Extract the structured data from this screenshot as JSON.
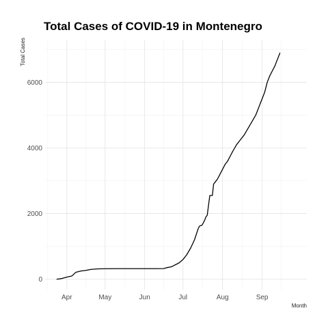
{
  "chart_data": {
    "type": "line",
    "title": "Total Cases of COVID-19 in Montenegro",
    "xlabel": "Month",
    "ylabel": "Total Cases",
    "x_tick_labels": [
      "Apr",
      "May",
      "Jun",
      "Jul",
      "Aug",
      "Sep"
    ],
    "x_tick_dates": [
      "2020-04-01",
      "2020-05-01",
      "2020-06-01",
      "2020-07-01",
      "2020-08-01",
      "2020-09-01"
    ],
    "y_ticks": [
      0,
      2000,
      4000,
      6000
    ],
    "xlim": [
      "2020-03-15",
      "2020-10-06"
    ],
    "ylim": [
      -320,
      7300
    ],
    "grid": true,
    "series": [
      {
        "color": "#000000",
        "x": [
          "2020-03-24",
          "2020-03-28",
          "2020-04-01",
          "2020-04-05",
          "2020-04-08",
          "2020-04-12",
          "2020-04-16",
          "2020-04-20",
          "2020-04-25",
          "2020-05-01",
          "2020-05-10",
          "2020-05-20",
          "2020-06-01",
          "2020-06-10",
          "2020-06-16",
          "2020-06-18",
          "2020-06-22",
          "2020-06-25",
          "2020-06-28",
          "2020-07-01",
          "2020-07-04",
          "2020-07-07",
          "2020-07-10",
          "2020-07-13",
          "2020-07-14",
          "2020-07-16",
          "2020-07-18",
          "2020-07-19",
          "2020-07-20",
          "2020-07-22",
          "2020-07-23",
          "2020-07-24",
          "2020-07-25",
          "2020-07-26",
          "2020-07-27",
          "2020-07-28",
          "2020-07-30",
          "2020-08-01",
          "2020-08-03",
          "2020-08-05",
          "2020-08-07",
          "2020-08-09",
          "2020-08-12",
          "2020-08-15",
          "2020-08-18",
          "2020-08-21",
          "2020-08-24",
          "2020-08-27",
          "2020-08-30",
          "2020-09-01",
          "2020-09-03",
          "2020-09-05",
          "2020-09-07",
          "2020-09-09",
          "2020-09-11",
          "2020-09-13",
          "2020-09-15"
        ],
        "values": [
          0,
          20,
          65,
          100,
          210,
          250,
          270,
          300,
          315,
          320,
          322,
          322,
          322,
          322,
          325,
          350,
          380,
          440,
          500,
          600,
          750,
          950,
          1200,
          1550,
          1620,
          1650,
          1800,
          1900,
          1950,
          2550,
          2550,
          2550,
          2900,
          2950,
          3000,
          3050,
          3200,
          3350,
          3500,
          3600,
          3750,
          3900,
          4100,
          4250,
          4400,
          4600,
          4800,
          5000,
          5300,
          5500,
          5700,
          6000,
          6200,
          6350,
          6500,
          6700,
          6900
        ]
      }
    ]
  }
}
